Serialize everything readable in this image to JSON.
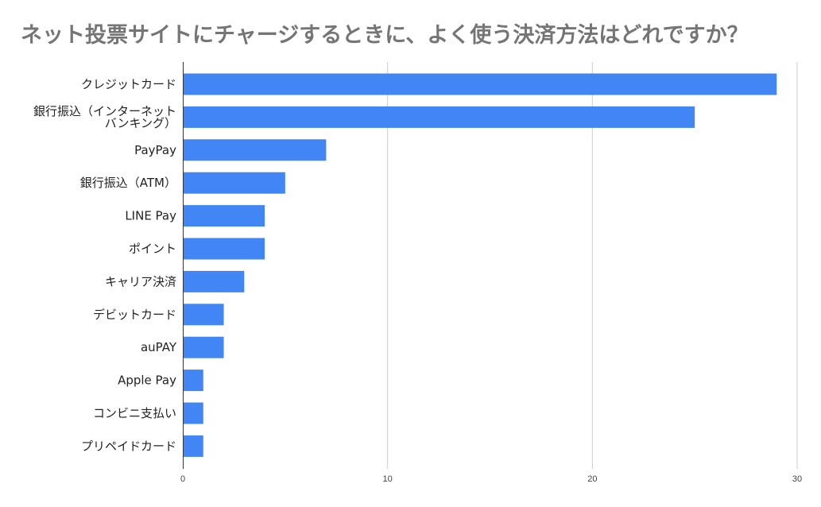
{
  "chart_data": {
    "type": "bar",
    "orientation": "horizontal",
    "title": "ネット投票サイトにチャージするときに、よく使う決済方法はどれですか？",
    "categories": [
      [
        "クレジットカード"
      ],
      [
        "銀行振込（インターネット",
        "バンキング）"
      ],
      [
        "PayPay"
      ],
      [
        "銀行振込（ATM）"
      ],
      [
        "LINE Pay"
      ],
      [
        "ポイント"
      ],
      [
        "キャリア決済"
      ],
      [
        "デビットカード"
      ],
      [
        "auPAY"
      ],
      [
        "Apple Pay"
      ],
      [
        "コンビニ支払い"
      ],
      [
        "プリペイドカード"
      ]
    ],
    "values": [
      29,
      25,
      7,
      5,
      4,
      4,
      3,
      2,
      2,
      1,
      1,
      1
    ],
    "xlim": [
      0,
      30
    ],
    "xticks": [
      "0",
      "10",
      "20",
      "30"
    ],
    "xlabel": "",
    "ylabel": "",
    "grid": "vertical",
    "legend": "none",
    "bar_color": "#4285f4",
    "grid_color": "#cccccc",
    "axis_color": "#333333"
  }
}
